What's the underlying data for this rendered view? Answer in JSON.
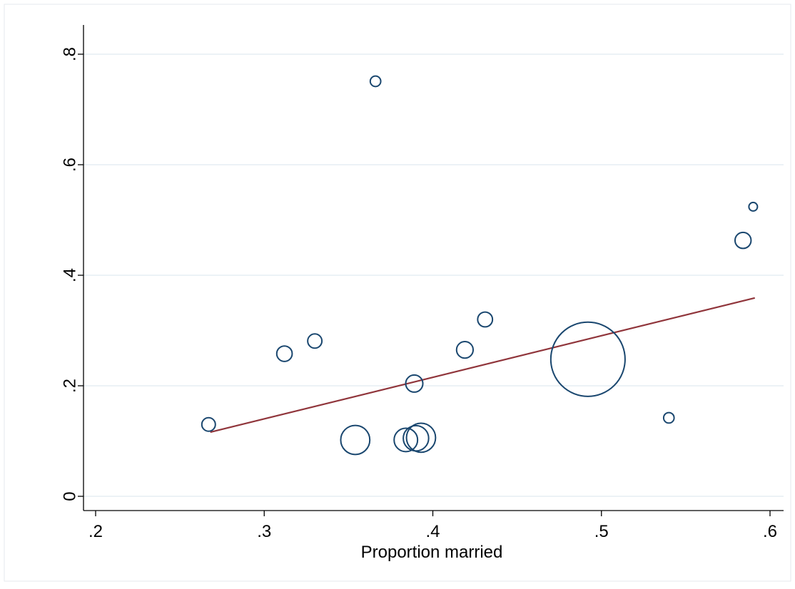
{
  "chart_data": {
    "type": "scatter",
    "title": "",
    "xlabel": "Proportion married",
    "ylabel": "",
    "xlim": [
      0.2,
      0.6
    ],
    "ylim": [
      0,
      0.8
    ],
    "xticks": [
      ".2",
      ".3",
      ".4",
      ".5",
      ".6"
    ],
    "xtick_values": [
      0.2,
      0.3,
      0.4,
      0.5,
      0.6
    ],
    "yticks": [
      "0",
      ".2",
      ".4",
      ".6",
      ".8"
    ],
    "ytick_values": [
      0,
      0.2,
      0.4,
      0.6,
      0.8
    ],
    "grid": "horizontal",
    "legend": "none",
    "marker": "hollow-circle-weighted",
    "series": [
      {
        "kind": "points",
        "color": "#1a476f",
        "x": [
          0.267,
          0.312,
          0.33,
          0.366,
          0.354,
          0.384,
          0.389,
          0.39,
          0.393,
          0.419,
          0.431,
          0.492,
          0.54,
          0.584,
          0.59
        ],
        "y": [
          0.13,
          0.258,
          0.281,
          0.751,
          0.102,
          0.102,
          0.204,
          0.105,
          0.106,
          0.265,
          0.32,
          0.248,
          0.142,
          0.463,
          0.524
        ],
        "weight": [
          1.0,
          1.3,
          1.1,
          0.6,
          4.6,
          3.0,
          1.6,
          3.5,
          4.6,
          1.5,
          1.2,
          30.0,
          0.6,
          1.4,
          0.4
        ]
      },
      {
        "kind": "fit-line",
        "color": "#90353b",
        "x": [
          0.268,
          0.591
        ],
        "y": [
          0.116,
          0.359
        ]
      }
    ]
  }
}
